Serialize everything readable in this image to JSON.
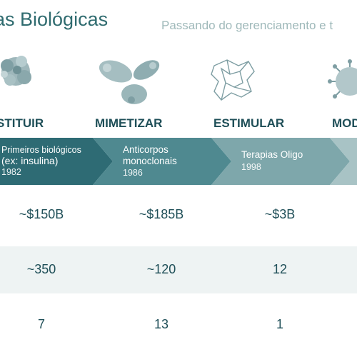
{
  "header": {
    "title": "as Biológicas",
    "subtitle": "Passando do gerenciamento e t"
  },
  "columns": [
    {
      "label": "STITUIR",
      "arrow_title_lines": [
        "Primeiros biológicos",
        "(ex: insulina)"
      ],
      "year": "1982",
      "market": "~$150B",
      "count": "~350",
      "third": "7",
      "icon": "protein-structure-icon"
    },
    {
      "label": "MIMETIZAR",
      "arrow_title_lines": [
        "Anticorpos",
        "monoclonais"
      ],
      "year": "1986",
      "market": "~$185B",
      "count": "~120",
      "third": "13",
      "icon": "antibody-icon"
    },
    {
      "label": "ESTIMULAR",
      "arrow_title_lines": [
        "Terapias Oligo"
      ],
      "year": "1998",
      "market": "~$3B",
      "count": "12",
      "third": "1",
      "icon": "oligo-structure-icon"
    },
    {
      "label": "MOD",
      "icon": "virus-particle-icon"
    }
  ],
  "colors": {
    "title": "#2f6b6f",
    "subtitle": "#9fb9ba",
    "label": "#1f4f58",
    "arrow1": "#2e6b74",
    "arrow2": "#4f8990",
    "arrow3": "#7ea7ab",
    "arrow4": "#a8c3c5",
    "band": "#eef3f3"
  }
}
